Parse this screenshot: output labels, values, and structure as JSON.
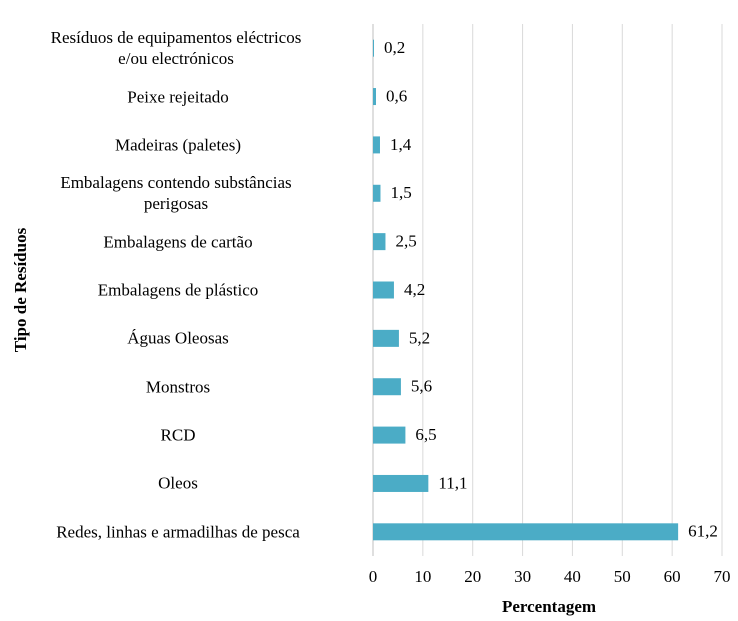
{
  "chart_data": {
    "type": "bar",
    "orientation": "horizontal",
    "x_label": "Percentagem",
    "y_label": "Tipo de Resíduos",
    "categories": [
      "Resíduos de equipamentos eléctricos\ne/ou electrónicos",
      "Peixe rejeitado",
      "Madeiras (paletes)",
      "Embalagens contendo substâncias\nperigosas",
      "Embalagens de cartão",
      "Embalagens de plástico",
      "Águas Oleosas",
      "Monstros",
      "RCD",
      "Oleos",
      "Redes, linhas e armadilhas de pesca"
    ],
    "values": [
      0.2,
      0.6,
      1.4,
      1.5,
      2.5,
      4.2,
      5.2,
      5.6,
      6.5,
      11.1,
      61.2
    ],
    "value_labels": [
      "0,2",
      "0,6",
      "1,4",
      "1,5",
      "2,5",
      "4,2",
      "5,2",
      "5,6",
      "6,5",
      "11,1",
      "61,2"
    ],
    "color": "#4bacc6",
    "xlim": [
      0,
      70
    ],
    "xticks": [
      0,
      10,
      20,
      30,
      40,
      50,
      60,
      70
    ],
    "grid": true
  }
}
